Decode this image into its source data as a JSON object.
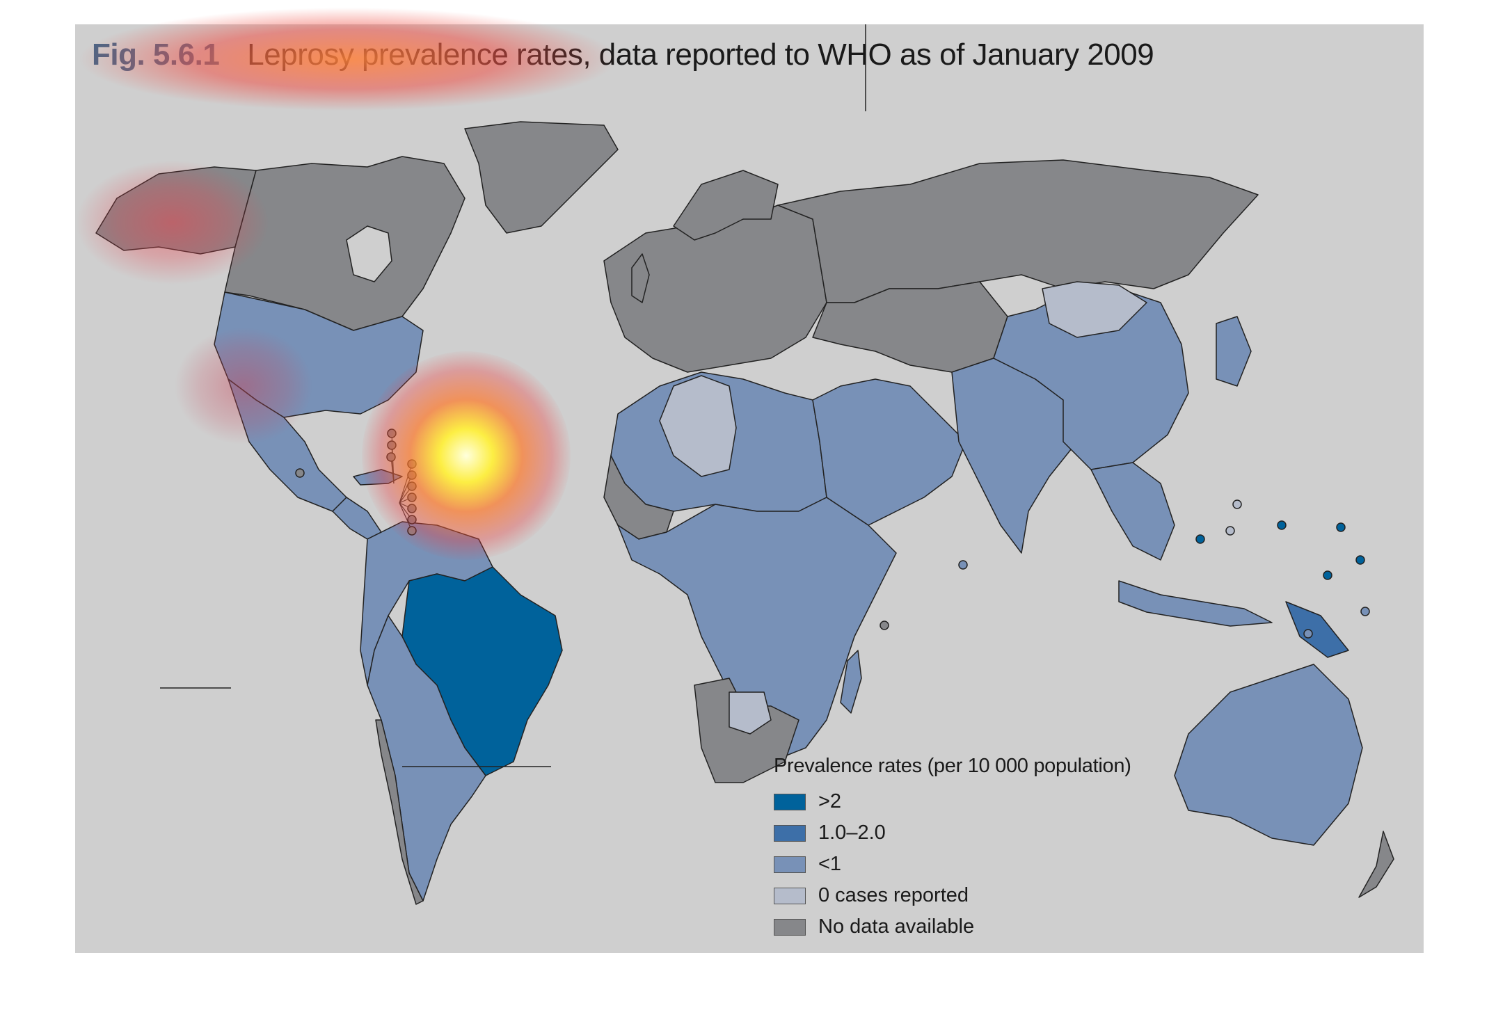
{
  "figure": {
    "label": "Fig. 5.6.1",
    "title": "Leprosy prevalence rates, data reported to WHO as of January 2009"
  },
  "legend": {
    "title": "Prevalence rates (per 10 000 population)",
    "items": [
      {
        "label": ">2",
        "color": "#00629b"
      },
      {
        "label": "1.0–2.0",
        "color": "#3d6fa8"
      },
      {
        "label": "<1",
        "color": "#7891b7"
      },
      {
        "label": "0 cases reported",
        "color": "#b5bccb"
      },
      {
        "label": "No data available",
        "color": "#86878a"
      }
    ]
  },
  "colors": {
    "background": "#cfcfcf",
    "ocean": "#cfcfcf",
    "border": "#222222"
  }
}
